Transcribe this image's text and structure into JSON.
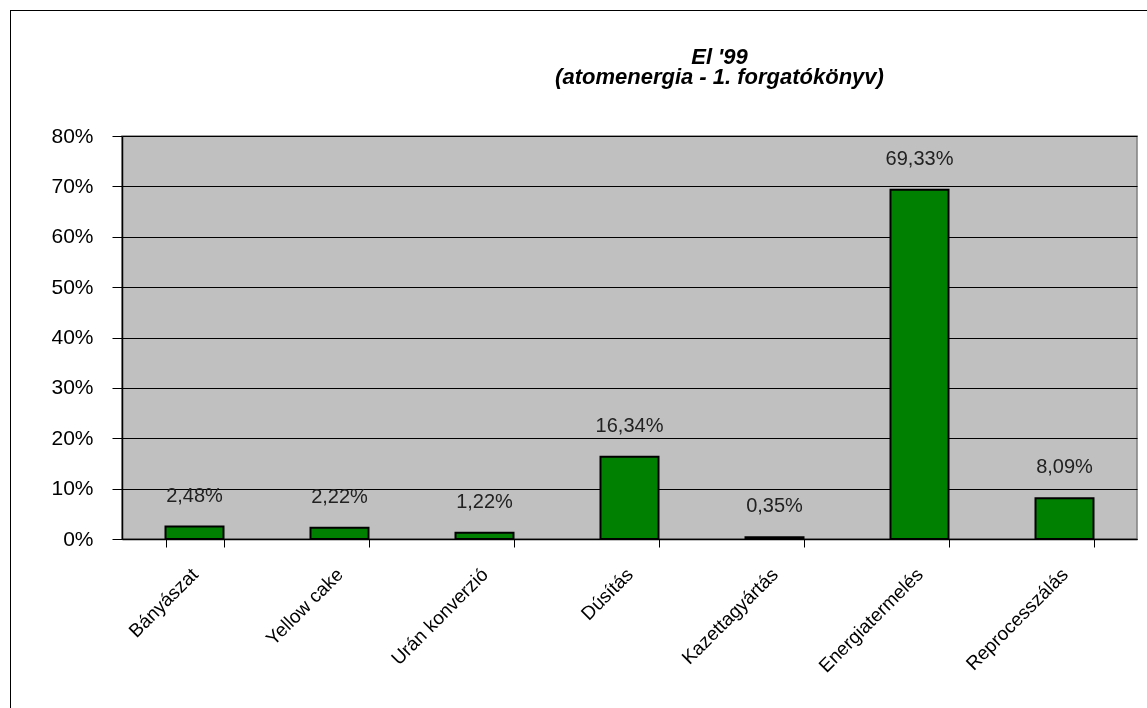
{
  "chart_data": {
    "type": "bar",
    "title": "El '99",
    "subtitle": "(atomenergia - 1. forgatókönyv)",
    "categories": [
      "Bányászat",
      "Yellow cake",
      "Urán konverzió",
      "Dúsítás",
      "Kazettagyártás",
      "Energiatermelés",
      "Reprocesszálás"
    ],
    "values": [
      2.48,
      2.22,
      1.22,
      16.34,
      0.35,
      69.33,
      8.09
    ],
    "value_labels": [
      "2,48%",
      "2,22%",
      "1,22%",
      "16,34%",
      "0,35%",
      "69,33%",
      "8,09%"
    ],
    "color": "#008000",
    "ylim": [
      0,
      80
    ],
    "yticks": [
      {
        "value": 0,
        "label": "0%"
      },
      {
        "value": 10,
        "label": "10%"
      },
      {
        "value": 20,
        "label": "20%"
      },
      {
        "value": 30,
        "label": "30%"
      },
      {
        "value": 40,
        "label": "40%"
      },
      {
        "value": 50,
        "label": "50%"
      },
      {
        "value": 60,
        "label": "60%"
      },
      {
        "value": 70,
        "label": "70%"
      },
      {
        "value": 80,
        "label": "80%"
      }
    ],
    "grid": "y"
  }
}
